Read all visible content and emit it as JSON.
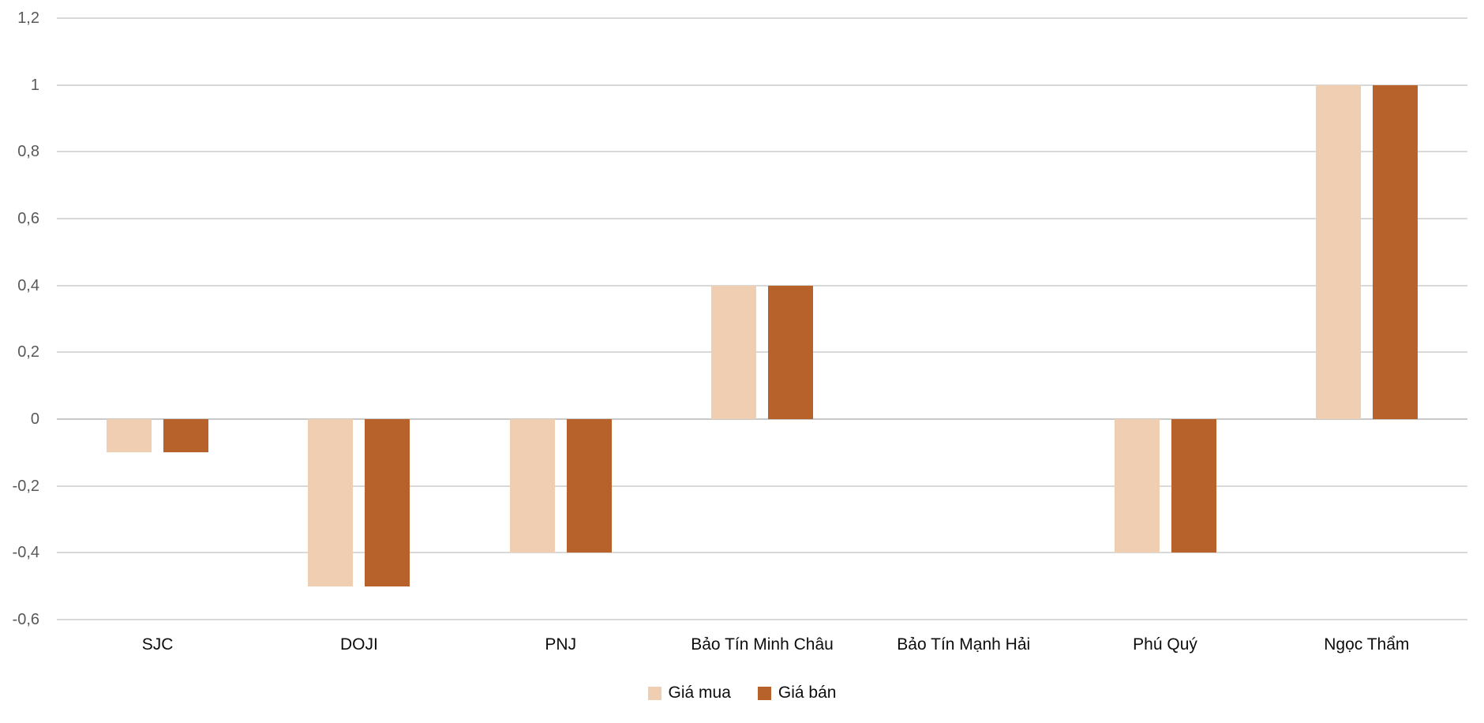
{
  "chart_data": {
    "type": "bar",
    "title": "",
    "xlabel": "",
    "ylabel": "",
    "categories": [
      "SJC",
      "DOJI",
      "PNJ",
      "Bảo Tín Minh Châu",
      "Bảo Tín Mạnh Hải",
      "Phú Quý",
      "Ngọc Thẩm"
    ],
    "series": [
      {
        "name": "Giá mua",
        "color": "#f0ceb2",
        "values": [
          -0.1,
          -0.5,
          -0.4,
          0.4,
          0,
          -0.4,
          1
        ]
      },
      {
        "name": "Giá bán",
        "color": "#b6622a",
        "values": [
          -0.1,
          -0.5,
          -0.4,
          0.4,
          0,
          -0.4,
          1
        ]
      }
    ],
    "y_axis": {
      "min": -0.6,
      "max": 1.2,
      "step": 0.2,
      "ticks": [
        {
          "value": 1.2,
          "label": "1,2"
        },
        {
          "value": 1,
          "label": "1"
        },
        {
          "value": 0.8,
          "label": "0,8"
        },
        {
          "value": 0.6,
          "label": "0,6"
        },
        {
          "value": 0.4,
          "label": "0,4"
        },
        {
          "value": 0.2,
          "label": "0,2"
        },
        {
          "value": 0,
          "label": "0"
        },
        {
          "value": -0.2,
          "label": "-0,2"
        },
        {
          "value": -0.4,
          "label": "-0,4"
        },
        {
          "value": -0.6,
          "label": "-0,6"
        }
      ]
    },
    "grid": true,
    "legend_position": "bottom",
    "colors": {
      "background": "#ffffff",
      "gridline": "#d9d9d9",
      "zero_line": "#c9c9c9",
      "y_tick_text": "#595959",
      "category_text": "#0d0d0d",
      "legend_text": "#0d0d0d"
    }
  }
}
